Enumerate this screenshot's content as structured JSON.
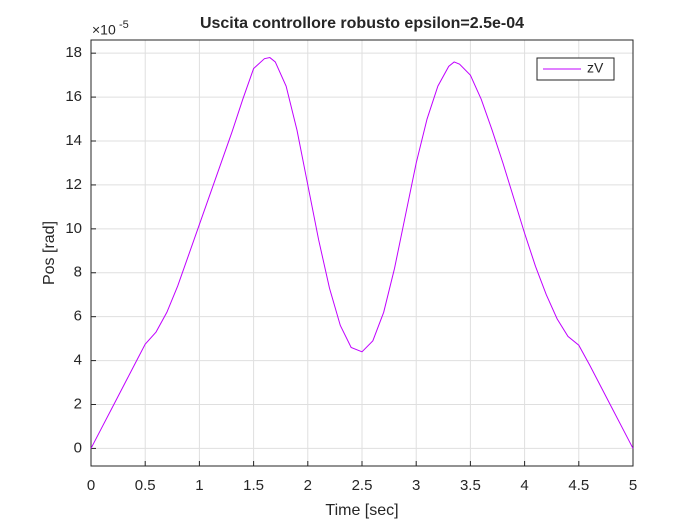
{
  "chart_data": {
    "type": "line",
    "title": "Uscita controllore robusto epsilon=2.5e-04",
    "xlabel": "Time [sec]",
    "ylabel": "Pos [rad]",
    "yexponent_base": "×10",
    "yexponent": "-5",
    "x": [
      0,
      0.1,
      0.2,
      0.3,
      0.4,
      0.5,
      0.6,
      0.7,
      0.8,
      0.9,
      1.0,
      1.1,
      1.2,
      1.3,
      1.4,
      1.5,
      1.6,
      1.65,
      1.7,
      1.8,
      1.9,
      2.0,
      2.1,
      2.2,
      2.3,
      2.4,
      2.5,
      2.6,
      2.7,
      2.8,
      2.9,
      3.0,
      3.1,
      3.2,
      3.3,
      3.35,
      3.4,
      3.5,
      3.6,
      3.7,
      3.8,
      3.9,
      4.0,
      4.1,
      4.2,
      4.3,
      4.4,
      4.5,
      4.6,
      4.7,
      4.8,
      4.9,
      5.0
    ],
    "series": [
      {
        "name": "zV",
        "color": "#c000ff",
        "values": [
          0,
          0.95,
          1.9,
          2.85,
          3.8,
          4.75,
          5.3,
          6.2,
          7.4,
          8.8,
          10.2,
          11.6,
          13.0,
          14.4,
          15.9,
          17.3,
          17.75,
          17.8,
          17.6,
          16.5,
          14.5,
          12.0,
          9.5,
          7.3,
          5.6,
          4.6,
          4.4,
          4.9,
          6.2,
          8.2,
          10.6,
          13.0,
          15.0,
          16.5,
          17.4,
          17.6,
          17.5,
          17.0,
          15.9,
          14.5,
          13.0,
          11.4,
          9.8,
          8.3,
          7.0,
          5.9,
          5.1,
          4.7,
          3.8,
          2.85,
          1.9,
          0.95,
          0
        ]
      }
    ],
    "xlim": [
      0,
      5
    ],
    "xticks": [
      0,
      0.5,
      1,
      1.5,
      2,
      2.5,
      3,
      3.5,
      4,
      4.5,
      5
    ],
    "ylim": [
      -0.8,
      18.6
    ],
    "yticks": [
      0,
      2,
      4,
      6,
      8,
      10,
      12,
      14,
      16,
      18
    ],
    "grid": true,
    "legend": "top-right"
  }
}
